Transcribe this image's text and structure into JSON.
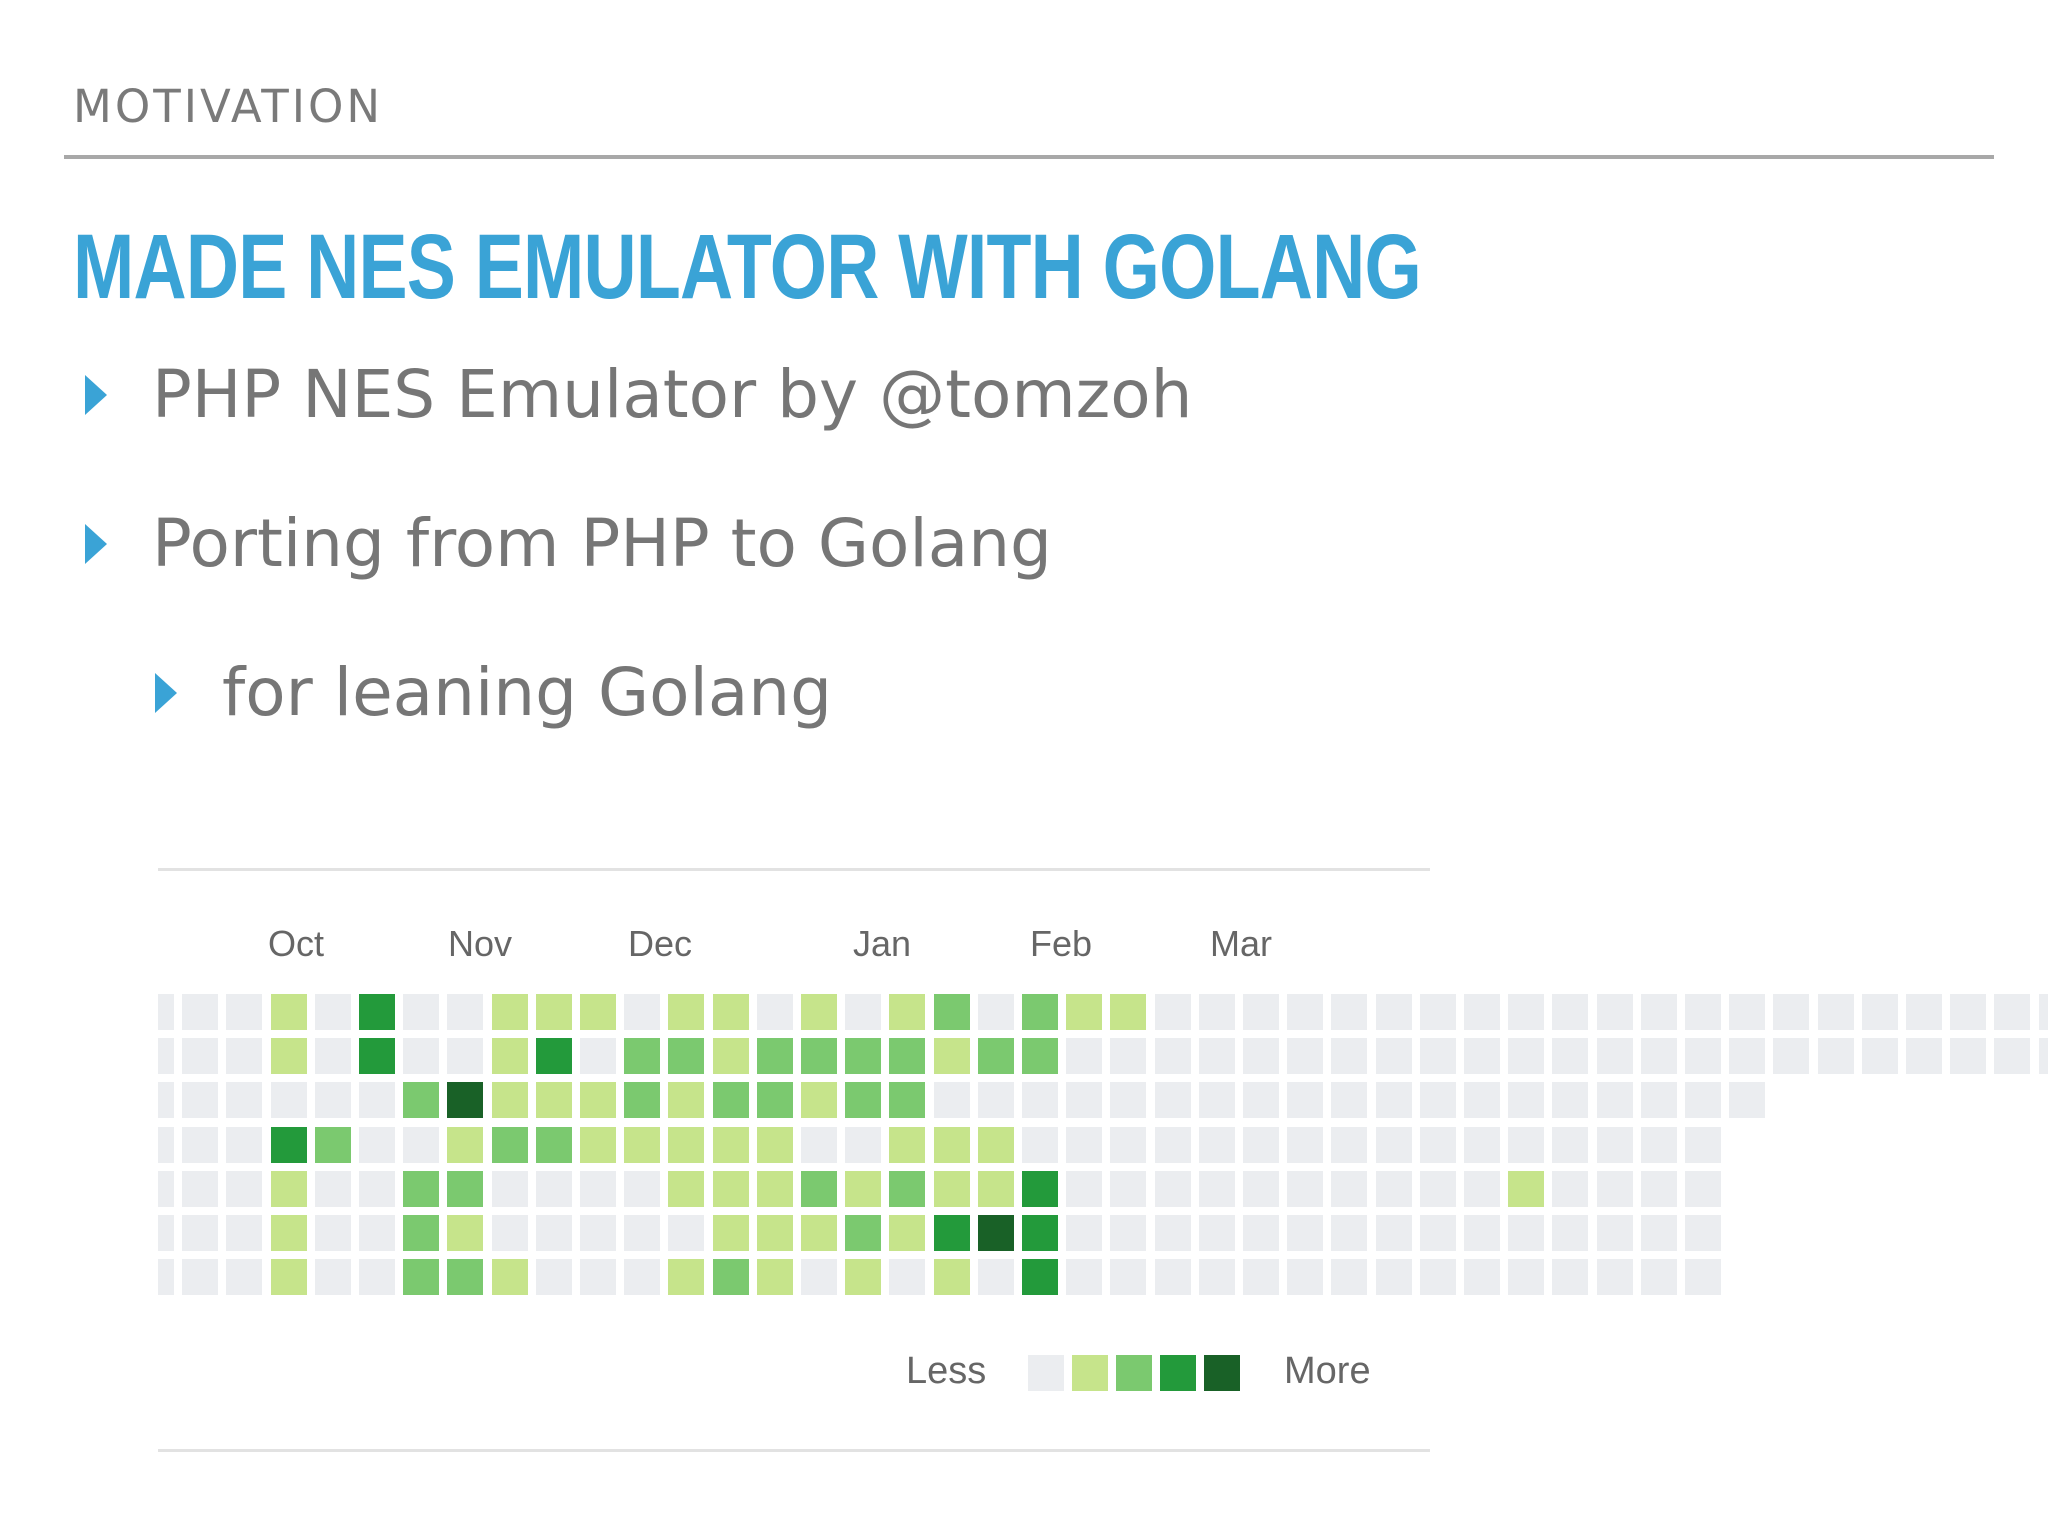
{
  "section_label": "MOTIVATION",
  "title": "MADE NES EMULATOR WITH GOLANG",
  "bullets": [
    "PHP NES Emulator by @tomzoh",
    "Porting from PHP to Golang",
    "for leaning Golang"
  ],
  "contributions": {
    "months": [
      "Oct",
      "Nov",
      "Dec",
      "Jan",
      "Feb",
      "Mar"
    ],
    "legend": {
      "less": "Less",
      "more": "More",
      "levels": [
        "#ebedf0",
        "#c6e48b",
        "#7bc96f",
        "#239a3b",
        "#196127"
      ]
    },
    "rows": [
      "00010300111011010120211000000000000000000000",
      "00010300130221222212200000000000000000000000",
      "0000002411121221220000000000000000000",
      "000320012211111001110000000000000000",
      "000100220000111212113000000000010000",
      "000100210000011121343000000000000000",
      "000100221000121010103000000000000000"
    ]
  }
}
